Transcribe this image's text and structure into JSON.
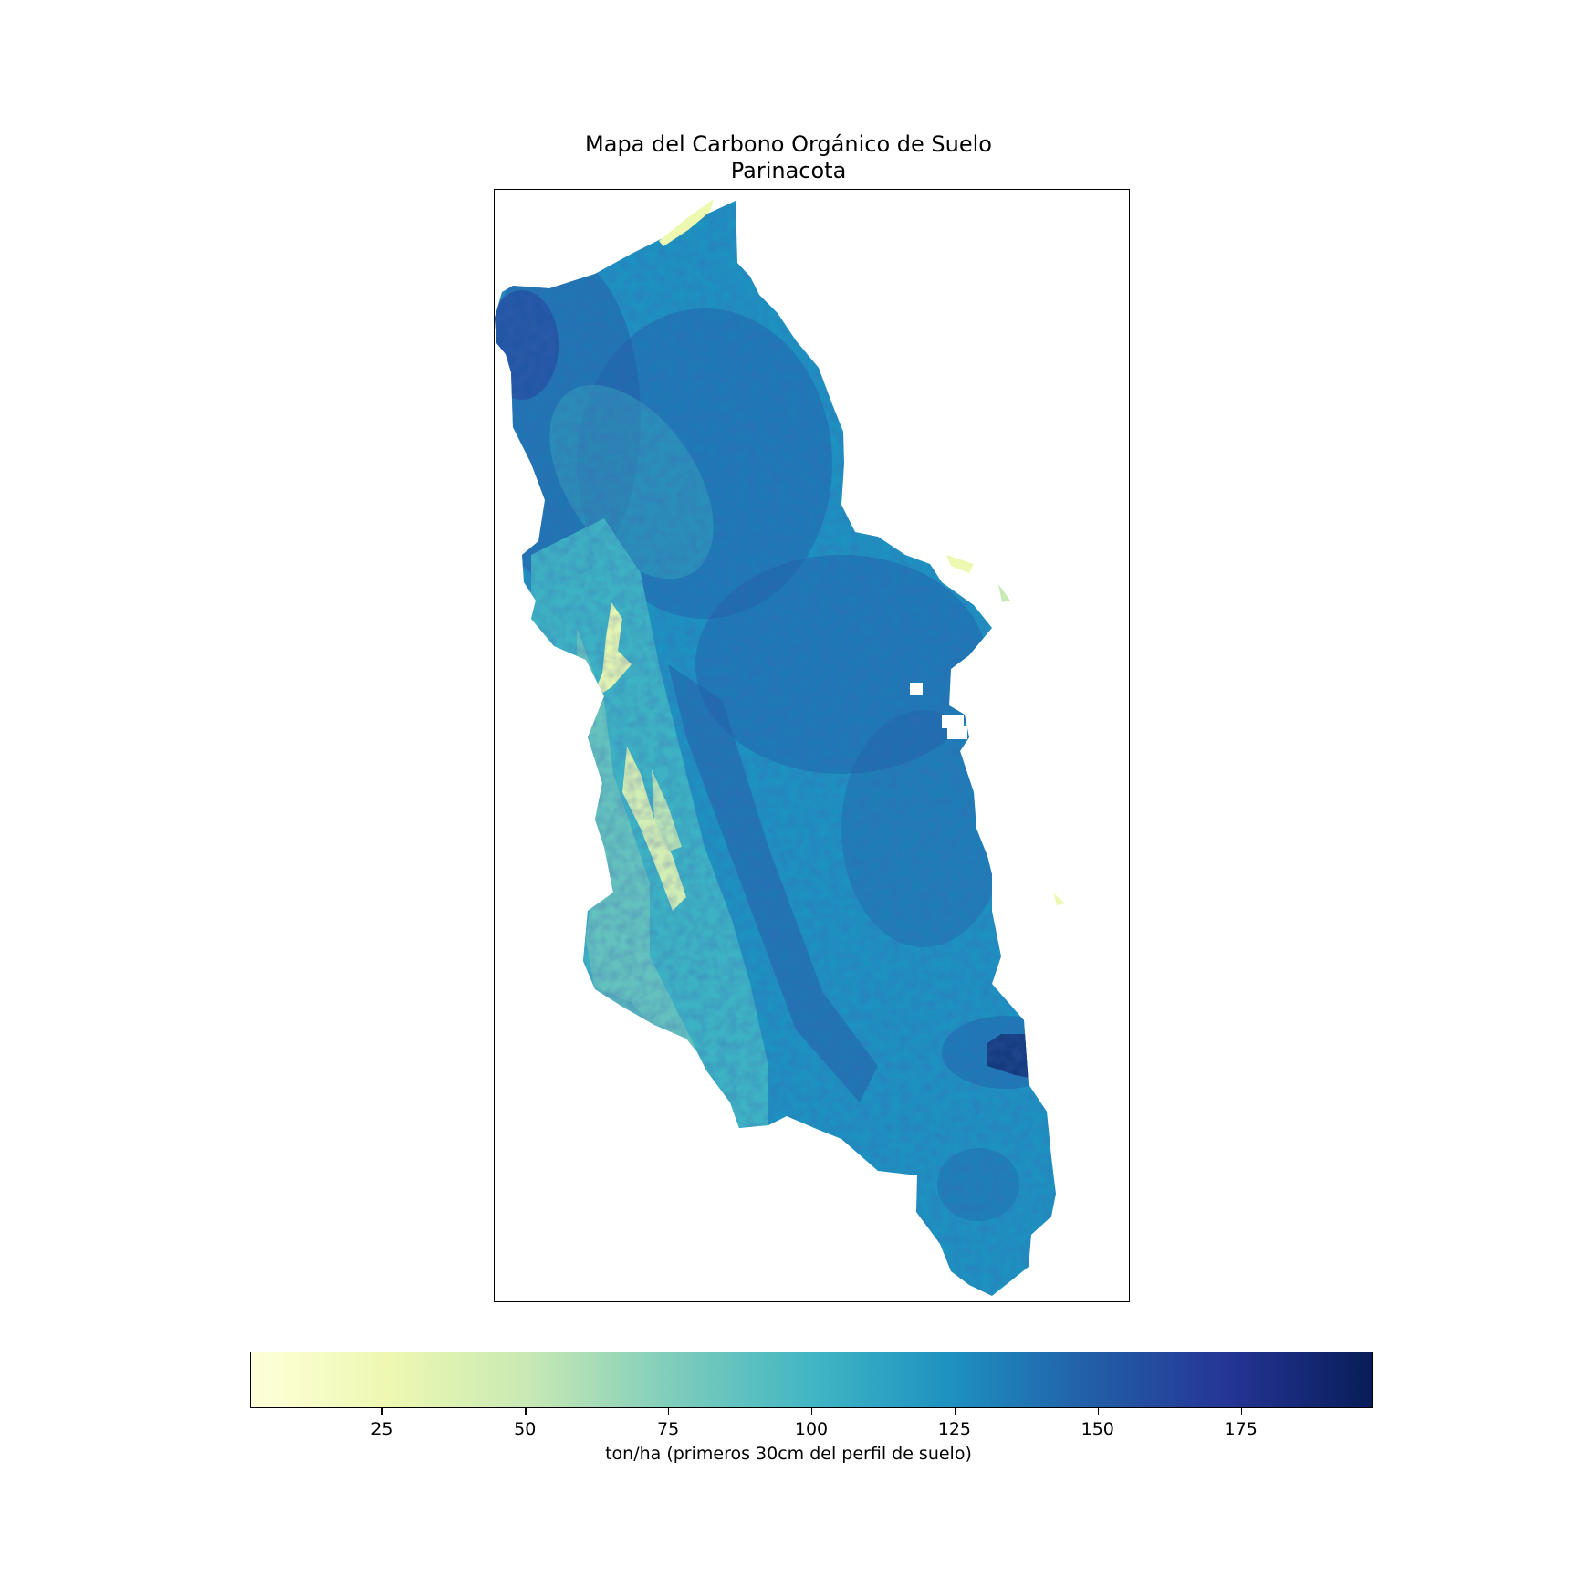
{
  "map": {
    "title_line1": "Mapa del Carbono Orgánico de Suelo",
    "title_line2": "Parinacota",
    "region": "Parinacota",
    "colormap": "YlGnBu",
    "colorbar": {
      "label": "ton/ha (primeros 30cm del perfil de suelo)",
      "range": [
        2,
        198
      ],
      "ticks": [
        25,
        50,
        75,
        100,
        125,
        150,
        175
      ],
      "tick_labels": [
        "25",
        "50",
        "75",
        "100",
        "125",
        "150",
        "175"
      ],
      "stops": [
        "#ffffd9",
        "#edf8b1",
        "#c7e9b4",
        "#7fcdbb",
        "#41b6c4",
        "#1d91c0",
        "#225ea8",
        "#253494",
        "#081d58"
      ]
    }
  },
  "colors": {
    "low": "#edf8b1",
    "mid": "#41b6c4",
    "base": "#1d91c0",
    "high": "#225ea8",
    "max": "#0b1f5e"
  }
}
